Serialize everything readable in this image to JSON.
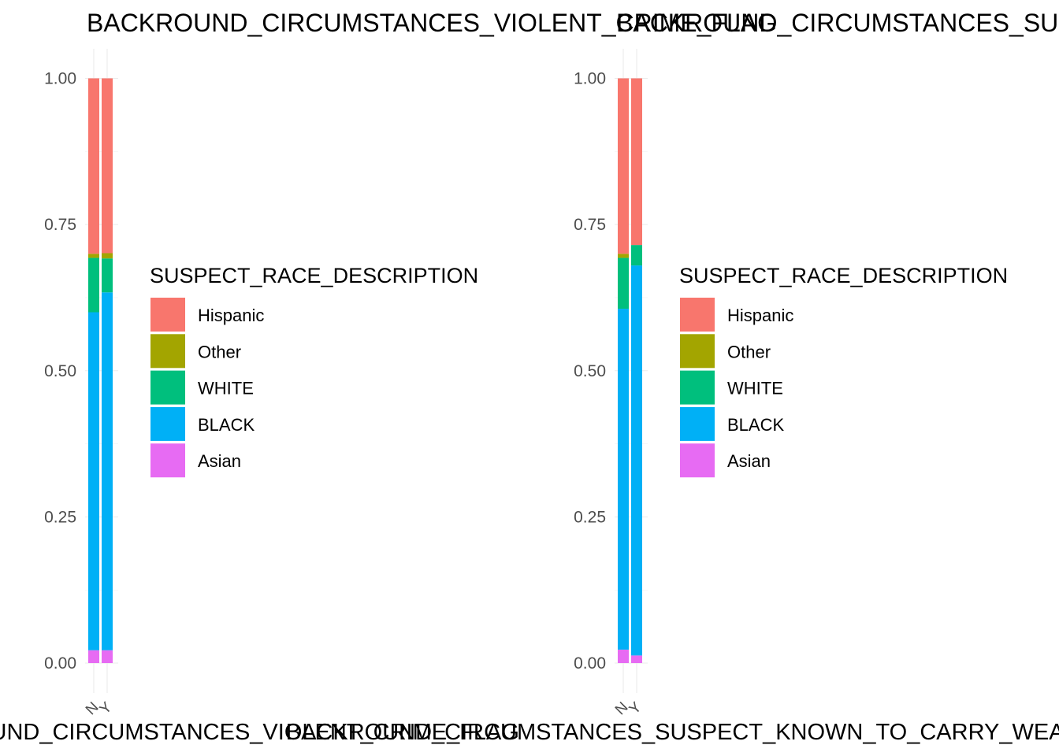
{
  "chart_data": [
    {
      "type": "bar",
      "stacked": true,
      "title": "BACKROUND_CIRCUMSTANCES_VIOLENT_CRIME_FLAG",
      "xlabel": "BACKROUND_CIRCUMSTANCES_VIOLENT_CRIME_FLAG",
      "ylabel": "",
      "categories": [
        "N",
        "Y"
      ],
      "ylim": [
        0,
        1
      ],
      "yticks": [
        "0.00",
        "0.25",
        "0.50",
        "0.75",
        "1.00"
      ],
      "grid": true,
      "legend_title": "SUSPECT_RACE_DESCRIPTION",
      "legend_position": "right",
      "series": [
        {
          "name": "Asian",
          "color": "#E76BF3",
          "values": [
            0.022,
            0.022
          ]
        },
        {
          "name": "BLACK",
          "color": "#00B0F6",
          "values": [
            0.578,
            0.612
          ]
        },
        {
          "name": "WHITE",
          "color": "#00BF7D",
          "values": [
            0.093,
            0.058
          ]
        },
        {
          "name": "Other",
          "color": "#A3A500",
          "values": [
            0.007,
            0.009
          ]
        },
        {
          "name": "Hispanic",
          "color": "#F8766D",
          "values": [
            0.3,
            0.299
          ]
        }
      ]
    },
    {
      "type": "bar",
      "stacked": true,
      "title": "BACKROUND_CIRCUMSTANCES_SUSPECT_KNOWN_TO_CARRY_WEAPON_FLAG",
      "xlabel": "BACKROUND_CIRCUMSTANCES_SUSPECT_KNOWN_TO_CARRY_WEAPON_FLAG",
      "ylabel": "",
      "categories": [
        "N",
        "Y"
      ],
      "ylim": [
        0,
        1
      ],
      "yticks": [
        "0.00",
        "0.25",
        "0.50",
        "0.75",
        "1.00"
      ],
      "grid": true,
      "legend_title": "SUSPECT_RACE_DESCRIPTION",
      "legend_position": "right",
      "series": [
        {
          "name": "Asian",
          "color": "#E76BF3",
          "values": [
            0.023,
            0.013
          ]
        },
        {
          "name": "BLACK",
          "color": "#00B0F6",
          "values": [
            0.583,
            0.667
          ]
        },
        {
          "name": "WHITE",
          "color": "#00BF7D",
          "values": [
            0.087,
            0.035
          ]
        },
        {
          "name": "Other",
          "color": "#A3A500",
          "values": [
            0.007,
            0.0
          ]
        },
        {
          "name": "Hispanic",
          "color": "#F8766D",
          "values": [
            0.3,
            0.285
          ]
        }
      ]
    }
  ]
}
